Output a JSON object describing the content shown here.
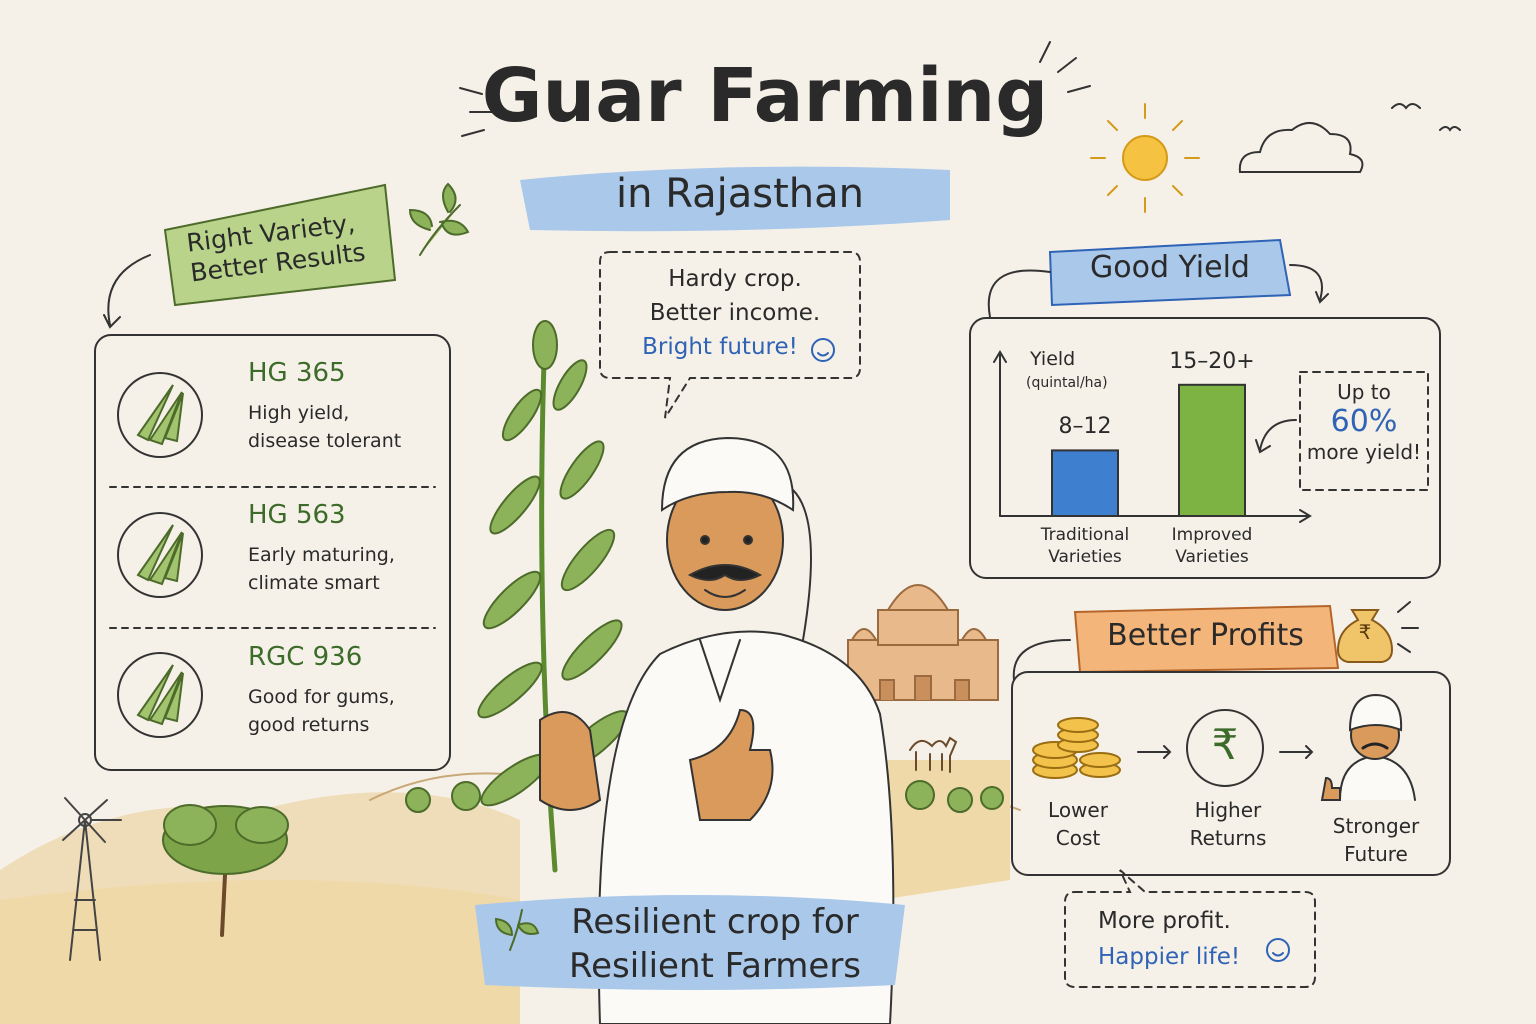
{
  "header": {
    "title": "Guar Farming",
    "subtitle": "in Rajasthan"
  },
  "varieties": {
    "banner": [
      "Right Variety,",
      "Better Results"
    ],
    "items": [
      {
        "name": "HG 365",
        "description": [
          "High yield,",
          "disease tolerant"
        ]
      },
      {
        "name": "HG 563",
        "description": [
          "Early maturing,",
          "climate smart"
        ]
      },
      {
        "name": "RGC 936",
        "description": [
          "Good for gums,",
          "good returns"
        ]
      }
    ]
  },
  "speech_bubble": {
    "lines": [
      "Hardy crop.",
      "Better income."
    ],
    "highlight": "Bright future!"
  },
  "yield": {
    "banner": "Good Yield",
    "chart_data": {
      "type": "bar",
      "y_label": "Yield",
      "y_unit": "(quintal/ha)",
      "categories": [
        "Traditional Varieties",
        "Improved Varieties"
      ],
      "values": [
        10,
        20
      ],
      "value_labels": [
        "8–12",
        "15–20+"
      ],
      "colors": [
        "#3f7fd0",
        "#7cb342"
      ],
      "ylim": [
        0,
        25
      ]
    },
    "callout": {
      "top": "Up to",
      "highlight": "60%",
      "bottom": "more yield!"
    }
  },
  "profits": {
    "banner": "Better Profits",
    "currency_symbol": "₹",
    "steps": [
      "Lower Cost",
      "Higher Returns",
      "Stronger Future"
    ],
    "bubble": {
      "line": "More profit.",
      "highlight": "Happier life!"
    }
  },
  "footer": [
    "Resilient crop for",
    "Resilient Farmers"
  ]
}
